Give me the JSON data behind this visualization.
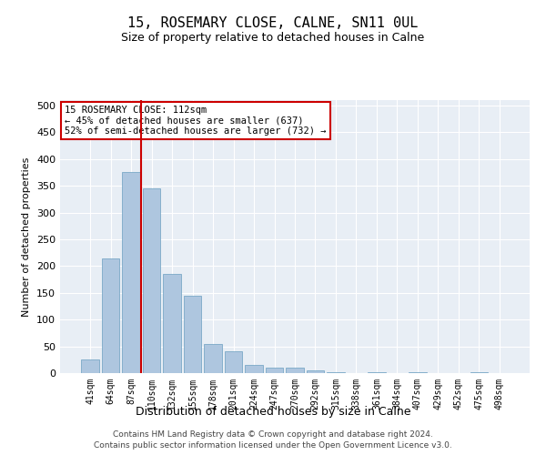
{
  "title": "15, ROSEMARY CLOSE, CALNE, SN11 0UL",
  "subtitle": "Size of property relative to detached houses in Calne",
  "xlabel": "Distribution of detached houses by size in Calne",
  "ylabel": "Number of detached properties",
  "categories": [
    "41sqm",
    "64sqm",
    "87sqm",
    "110sqm",
    "132sqm",
    "155sqm",
    "178sqm",
    "201sqm",
    "224sqm",
    "247sqm",
    "270sqm",
    "292sqm",
    "315sqm",
    "338sqm",
    "361sqm",
    "384sqm",
    "407sqm",
    "429sqm",
    "452sqm",
    "475sqm",
    "498sqm"
  ],
  "values": [
    25,
    215,
    375,
    345,
    185,
    145,
    55,
    40,
    15,
    10,
    10,
    5,
    2,
    0,
    2,
    0,
    2,
    0,
    0,
    2,
    0
  ],
  "bar_color": "#aec6df",
  "bar_edge_color": "#6a9fc0",
  "vline_color": "#cc0000",
  "vline_position": 2.5,
  "annotation_text": "15 ROSEMARY CLOSE: 112sqm\n← 45% of detached houses are smaller (637)\n52% of semi-detached houses are larger (732) →",
  "annotation_box_color": "#cc0000",
  "ylim": [
    0,
    510
  ],
  "yticks": [
    0,
    50,
    100,
    150,
    200,
    250,
    300,
    350,
    400,
    450,
    500
  ],
  "bg_color": "#e8eef5",
  "footer_line1": "Contains HM Land Registry data © Crown copyright and database right 2024.",
  "footer_line2": "Contains public sector information licensed under the Open Government Licence v3.0."
}
